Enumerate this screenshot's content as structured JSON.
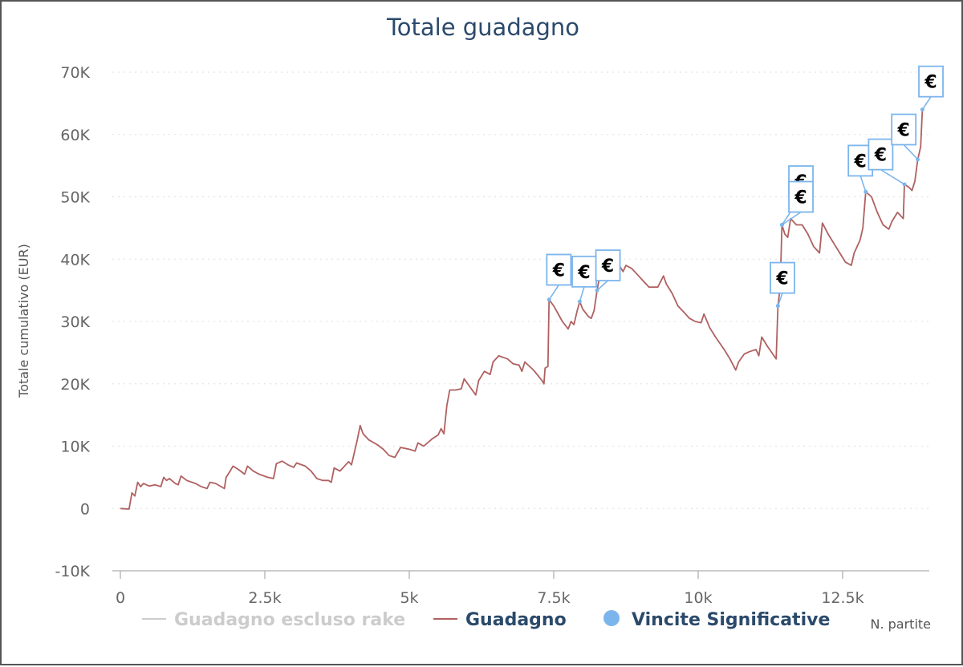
{
  "chart_data": {
    "type": "line",
    "title": "Totale guadagno",
    "ylabel": "Totale cumulativo (EUR)",
    "xlabel": "N. partite",
    "xlim": [
      0,
      14000
    ],
    "ylim": [
      -10000,
      70000
    ],
    "x_ticks": [
      "0",
      "2.5k",
      "5k",
      "7.5k",
      "10k",
      "12.5k"
    ],
    "x_tick_values": [
      0,
      2500,
      5000,
      7500,
      10000,
      12500
    ],
    "y_ticks": [
      "-10K",
      "0",
      "10K",
      "20K",
      "30K",
      "40K",
      "50K",
      "60K",
      "70K"
    ],
    "y_tick_values": [
      -10000,
      0,
      10000,
      20000,
      30000,
      40000,
      50000,
      60000,
      70000
    ],
    "grid": true,
    "legend_position": "bottom",
    "legend": [
      {
        "label": "Guadagno escluso rake",
        "color": "#cccccc",
        "marker": "line",
        "visible": false
      },
      {
        "label": "Guadagno",
        "color": "#b06060",
        "marker": "line",
        "visible": true
      },
      {
        "label": "Vincite Significative",
        "color": "#7cb5ec",
        "marker": "circle",
        "visible": true
      }
    ],
    "series": [
      {
        "name": "Guadagno",
        "color": "#b06060",
        "points": [
          [
            0,
            0
          ],
          [
            150,
            -100
          ],
          [
            200,
            2500
          ],
          [
            250,
            2000
          ],
          [
            300,
            4200
          ],
          [
            350,
            3500
          ],
          [
            400,
            4000
          ],
          [
            500,
            3600
          ],
          [
            600,
            3800
          ],
          [
            700,
            3500
          ],
          [
            750,
            5000
          ],
          [
            800,
            4500
          ],
          [
            850,
            4800
          ],
          [
            950,
            4000
          ],
          [
            1000,
            3800
          ],
          [
            1050,
            5200
          ],
          [
            1150,
            4500
          ],
          [
            1300,
            4000
          ],
          [
            1400,
            3500
          ],
          [
            1500,
            3200
          ],
          [
            1550,
            4200
          ],
          [
            1650,
            4000
          ],
          [
            1800,
            3200
          ],
          [
            1830,
            5000
          ],
          [
            1900,
            6000
          ],
          [
            1950,
            6800
          ],
          [
            2050,
            6200
          ],
          [
            2150,
            5500
          ],
          [
            2200,
            6800
          ],
          [
            2300,
            6000
          ],
          [
            2400,
            5500
          ],
          [
            2550,
            5000
          ],
          [
            2650,
            4800
          ],
          [
            2700,
            7200
          ],
          [
            2800,
            7600
          ],
          [
            2900,
            7000
          ],
          [
            3000,
            6600
          ],
          [
            3050,
            7300
          ],
          [
            3200,
            6800
          ],
          [
            3300,
            6000
          ],
          [
            3400,
            4800
          ],
          [
            3500,
            4500
          ],
          [
            3600,
            4500
          ],
          [
            3650,
            4200
          ],
          [
            3700,
            6500
          ],
          [
            3800,
            6000
          ],
          [
            3900,
            7000
          ],
          [
            3950,
            7500
          ],
          [
            4000,
            7000
          ],
          [
            4050,
            9000
          ],
          [
            4100,
            11000
          ],
          [
            4150,
            13300
          ],
          [
            4200,
            12000
          ],
          [
            4300,
            11000
          ],
          [
            4450,
            10200
          ],
          [
            4550,
            9500
          ],
          [
            4650,
            8500
          ],
          [
            4750,
            8200
          ],
          [
            4850,
            9800
          ],
          [
            5000,
            9500
          ],
          [
            5100,
            9200
          ],
          [
            5150,
            10500
          ],
          [
            5250,
            10000
          ],
          [
            5400,
            11200
          ],
          [
            5500,
            11800
          ],
          [
            5550,
            12800
          ],
          [
            5600,
            12000
          ],
          [
            5650,
            16500
          ],
          [
            5700,
            19000
          ],
          [
            5800,
            19000
          ],
          [
            5900,
            19200
          ],
          [
            5950,
            20800
          ],
          [
            6050,
            19500
          ],
          [
            6150,
            18200
          ],
          [
            6200,
            20500
          ],
          [
            6300,
            22000
          ],
          [
            6400,
            21500
          ],
          [
            6450,
            23500
          ],
          [
            6550,
            24500
          ],
          [
            6700,
            24000
          ],
          [
            6800,
            23200
          ],
          [
            6900,
            23000
          ],
          [
            6950,
            22000
          ],
          [
            7000,
            23500
          ],
          [
            7150,
            22200
          ],
          [
            7300,
            20500
          ],
          [
            7330,
            20000
          ],
          [
            7350,
            22500
          ],
          [
            7400,
            22800
          ],
          [
            7420,
            33500
          ],
          [
            7500,
            32500
          ],
          [
            7650,
            30000
          ],
          [
            7750,
            28800
          ],
          [
            7800,
            30000
          ],
          [
            7850,
            29500
          ],
          [
            7900,
            31500
          ],
          [
            7950,
            33200
          ],
          [
            8000,
            32000
          ],
          [
            8100,
            30800
          ],
          [
            8150,
            30500
          ],
          [
            8200,
            31800
          ],
          [
            8250,
            35000
          ],
          [
            8300,
            37500
          ],
          [
            8350,
            38000
          ],
          [
            8400,
            37800
          ],
          [
            8500,
            37500
          ],
          [
            8600,
            39500
          ],
          [
            8700,
            38000
          ],
          [
            8750,
            39000
          ],
          [
            8850,
            38500
          ],
          [
            8950,
            37500
          ],
          [
            9050,
            36500
          ],
          [
            9150,
            35500
          ],
          [
            9300,
            35500
          ],
          [
            9400,
            37300
          ],
          [
            9450,
            36000
          ],
          [
            9550,
            34500
          ],
          [
            9650,
            32500
          ],
          [
            9750,
            31500
          ],
          [
            9850,
            30500
          ],
          [
            9950,
            30000
          ],
          [
            10050,
            29800
          ],
          [
            10100,
            31200
          ],
          [
            10200,
            29000
          ],
          [
            10300,
            27500
          ],
          [
            10450,
            25500
          ],
          [
            10550,
            24000
          ],
          [
            10650,
            22200
          ],
          [
            10700,
            23500
          ],
          [
            10800,
            24800
          ],
          [
            10900,
            25200
          ],
          [
            11000,
            25500
          ],
          [
            11050,
            24500
          ],
          [
            11100,
            27500
          ],
          [
            11200,
            26000
          ],
          [
            11350,
            24000
          ],
          [
            11380,
            32500
          ],
          [
            11420,
            35500
          ],
          [
            11450,
            45500
          ],
          [
            11500,
            44000
          ],
          [
            11550,
            43500
          ],
          [
            11600,
            46500
          ],
          [
            11700,
            45500
          ],
          [
            11800,
            45500
          ],
          [
            11900,
            44000
          ],
          [
            12000,
            42000
          ],
          [
            12100,
            41000
          ],
          [
            12150,
            45800
          ],
          [
            12250,
            44000
          ],
          [
            12350,
            42500
          ],
          [
            12450,
            41000
          ],
          [
            12550,
            39500
          ],
          [
            12650,
            39000
          ],
          [
            12700,
            41000
          ],
          [
            12800,
            43000
          ],
          [
            12850,
            45000
          ],
          [
            12900,
            50800
          ],
          [
            13000,
            50000
          ],
          [
            13100,
            47500
          ],
          [
            13200,
            45500
          ],
          [
            13300,
            44800
          ],
          [
            13350,
            46000
          ],
          [
            13450,
            47500
          ],
          [
            13550,
            46500
          ],
          [
            13570,
            52000
          ],
          [
            13650,
            51500
          ],
          [
            13700,
            51000
          ],
          [
            13750,
            52500
          ],
          [
            13800,
            56000
          ],
          [
            13850,
            58000
          ],
          [
            13880,
            64000
          ]
        ]
      }
    ],
    "significant_wins": [
      {
        "x": 7420,
        "y": 33500,
        "label": "€",
        "flag_x": 7380,
        "flag_y": 38300
      },
      {
        "x": 7950,
        "y": 33200,
        "label": "€",
        "flag_x": 7820,
        "flag_y": 38000
      },
      {
        "x": 8250,
        "y": 35000,
        "label": "€",
        "flag_x": 8230,
        "flag_y": 39000
      },
      {
        "x": 11380,
        "y": 32500,
        "label": "€",
        "flag_x": 11250,
        "flag_y": 37000
      },
      {
        "x": 11450,
        "y": 45500,
        "label": "€",
        "flag_x": 11570,
        "flag_y": 52500
      },
      {
        "x": 11450,
        "y": 45500,
        "label": "€",
        "flag_x": 11570,
        "flag_y": 50000
      },
      {
        "x": 12900,
        "y": 50800,
        "label": "€",
        "flag_x": 12600,
        "flag_y": 55800
      },
      {
        "x": 13570,
        "y": 52000,
        "label": "€",
        "flag_x": 12950,
        "flag_y": 56800
      },
      {
        "x": 13800,
        "y": 56000,
        "label": "€",
        "flag_x": 13350,
        "flag_y": 60800
      },
      {
        "x": 13880,
        "y": 64000,
        "label": "€",
        "flag_x": 13820,
        "flag_y": 68500
      }
    ]
  }
}
